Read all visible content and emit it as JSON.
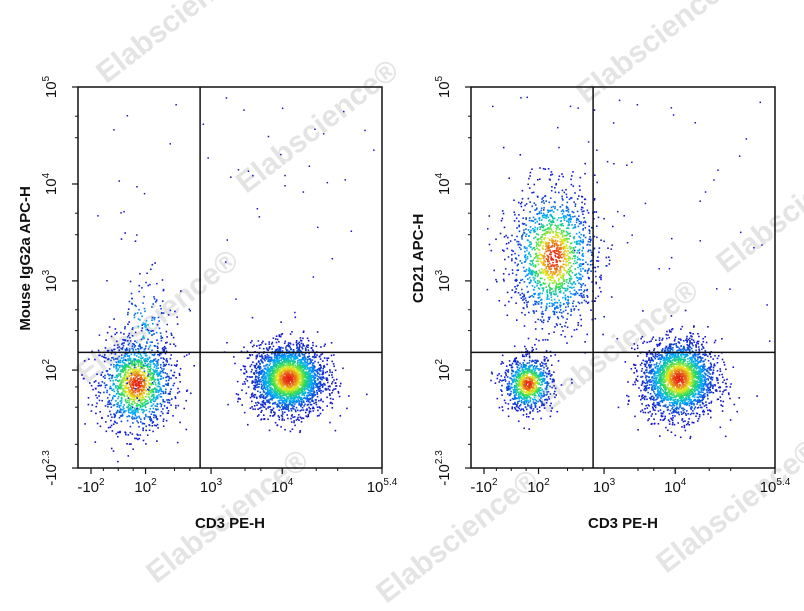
{
  "watermark": "Elabscience®",
  "chart_data": [
    {
      "type": "scatter",
      "title": "",
      "xlabel": "CD3 PE-H",
      "ylabel": "Mouse IgG2a APC-H",
      "x_scale": "biexponential",
      "y_scale": "biexponential",
      "x_ticks": [
        {
          "value": -100,
          "label": "-10",
          "exp": "2"
        },
        {
          "value": 100,
          "label": "10",
          "exp": "2"
        },
        {
          "value": 1000,
          "label": "10",
          "exp": "3"
        },
        {
          "value": 10000,
          "label": "10",
          "exp": "4"
        },
        {
          "value": 251189,
          "label": "10",
          "exp": "5.4"
        }
      ],
      "y_ticks": [
        {
          "value": -200,
          "label": "-10",
          "exp": "2.3"
        },
        {
          "value": 100,
          "label": "10",
          "exp": "2"
        },
        {
          "value": 1000,
          "label": "10",
          "exp": "3"
        },
        {
          "value": 10000,
          "label": "10",
          "exp": "4"
        },
        {
          "value": 100000,
          "label": "10",
          "exp": "5"
        }
      ],
      "xlim": [
        -170,
        251189
      ],
      "ylim": [
        -200,
        100000
      ],
      "quadrant_gate": {
        "x": 700,
        "y": 170
      },
      "populations": [
        {
          "x": 60,
          "y": 60,
          "sx": 0.06,
          "sy": 0.06,
          "n": 1400
        },
        {
          "x": 12000,
          "y": 75,
          "sx": 0.06,
          "sy": 0.045,
          "n": 2600
        },
        {
          "x": 90,
          "y": 260,
          "sx": 0.05,
          "sy": 0.09,
          "n": 160
        }
      ]
    },
    {
      "type": "scatter",
      "title": "",
      "xlabel": "CD3 PE-H",
      "ylabel": "CD21 APC-H",
      "x_scale": "biexponential",
      "y_scale": "biexponential",
      "x_ticks": [
        {
          "value": -100,
          "label": "-10",
          "exp": "2"
        },
        {
          "value": 100,
          "label": "10",
          "exp": "2"
        },
        {
          "value": 1000,
          "label": "10",
          "exp": "3"
        },
        {
          "value": 10000,
          "label": "10",
          "exp": "4"
        },
        {
          "value": 251189,
          "label": "10",
          "exp": "5.4"
        }
      ],
      "y_ticks": [
        {
          "value": -200,
          "label": "-10",
          "exp": "2.3"
        },
        {
          "value": 100,
          "label": "10",
          "exp": "2"
        },
        {
          "value": 1000,
          "label": "10",
          "exp": "3"
        },
        {
          "value": 10000,
          "label": "10",
          "exp": "4"
        },
        {
          "value": 100000,
          "label": "10",
          "exp": "5"
        }
      ],
      "xlim": [
        -170,
        251189
      ],
      "ylim": [
        -200,
        100000
      ],
      "quadrant_gate": {
        "x": 700,
        "y": 170
      },
      "populations": [
        {
          "x": 55,
          "y": 60,
          "sx": 0.04,
          "sy": 0.035,
          "n": 900
        },
        {
          "x": 180,
          "y": 1800,
          "sx": 0.07,
          "sy": 0.09,
          "n": 1500
        },
        {
          "x": 11000,
          "y": 75,
          "sx": 0.06,
          "sy": 0.05,
          "n": 2300
        }
      ]
    }
  ]
}
